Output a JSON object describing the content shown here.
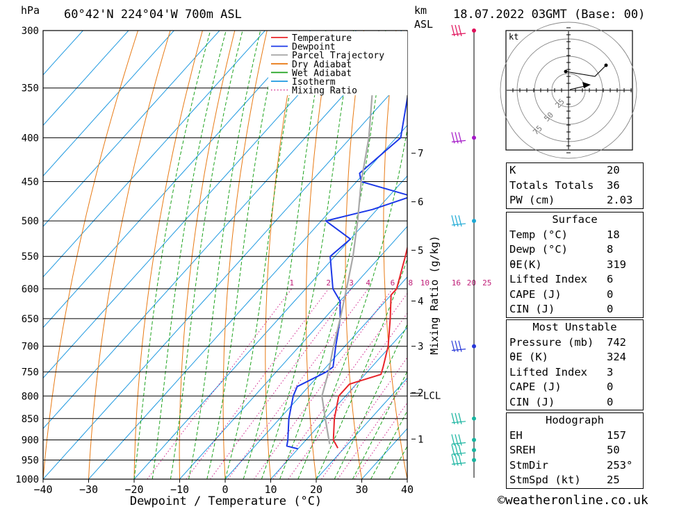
{
  "header": {
    "station": "60°42'N  224°04'W  700m  ASL",
    "valid_time": "18.07.2022  03GMT  (Base: 00)",
    "pressure_unit": "hPa",
    "height_unit_line1": "km",
    "height_unit_line2": "ASL",
    "lcl_label": "LCL",
    "credit": "©weatheronline.co.uk"
  },
  "chart_data": {
    "type": "line",
    "xlabel": "Dewpoint / Temperature (°C)",
    "ylabel_left": "hPa",
    "ylabel_right": "Mixing Ratio (g/kg)",
    "x_ticks": [
      -40,
      -30,
      -20,
      -10,
      0,
      10,
      20,
      30,
      40
    ],
    "xlim": [
      -40,
      40
    ],
    "pressure_levels": [
      300,
      350,
      400,
      450,
      500,
      550,
      600,
      650,
      700,
      750,
      800,
      850,
      900,
      950,
      1000
    ],
    "ylim_hpa": [
      1000,
      300
    ],
    "y_scale": "log",
    "km_ticks": [
      {
        "km": 1,
        "p": 898
      },
      {
        "km": 2,
        "p": 793
      },
      {
        "km": 3,
        "p": 700
      },
      {
        "km": 4,
        "p": 620
      },
      {
        "km": 5,
        "p": 541
      },
      {
        "km": 6,
        "p": 475
      },
      {
        "km": 7,
        "p": 417
      }
    ],
    "lcl_hpa": 797,
    "mixing_ratio_labels": [
      "1",
      "2",
      "3",
      "4",
      "6",
      "8",
      "10",
      "16",
      "20",
      "25"
    ],
    "mixing_ratio_label_hpa": 600,
    "legend_position": "top-right",
    "legend": [
      {
        "name": "Temperature",
        "color": "#e8242a",
        "style": "solid"
      },
      {
        "name": "Dewpoint",
        "color": "#1c38e8",
        "style": "solid"
      },
      {
        "name": "Parcel Trajectory",
        "color": "#a8a8a8",
        "style": "solid"
      },
      {
        "name": "Dry Adiabat",
        "color": "#e87a14",
        "style": "solid"
      },
      {
        "name": "Wet Adiabat",
        "color": "#1ca21c",
        "style": "solid"
      },
      {
        "name": "Isotherm",
        "color": "#1c98e0",
        "style": "solid"
      },
      {
        "name": "Mixing Ratio",
        "color": "#d0208a",
        "style": "dotted"
      }
    ],
    "series": [
      {
        "name": "Temperature",
        "points": [
          [
            920,
            18.6
          ],
          [
            900,
            16
          ],
          [
            850,
            12
          ],
          [
            800,
            8.5
          ],
          [
            775,
            8.5
          ],
          [
            755,
            13.5
          ],
          [
            740,
            12.5
          ],
          [
            700,
            9.5
          ],
          [
            650,
            4.5
          ],
          [
            610,
            0
          ],
          [
            600,
            0
          ],
          [
            550,
            -4.5
          ],
          [
            530,
            -6.5
          ],
          [
            500,
            -9.5
          ],
          [
            450,
            -16
          ],
          [
            430,
            -18
          ],
          [
            400,
            -23
          ],
          [
            350,
            -31
          ],
          [
            300,
            -39
          ]
        ]
      },
      {
        "name": "Dewpoint",
        "points": [
          [
            922,
            10
          ],
          [
            915,
            7
          ],
          [
            900,
            6
          ],
          [
            850,
            2
          ],
          [
            800,
            -1.5
          ],
          [
            780,
            -2.5
          ],
          [
            750,
            1
          ],
          [
            740,
            1.5
          ],
          [
            700,
            -2
          ],
          [
            650,
            -6.5
          ],
          [
            620,
            -10
          ],
          [
            600,
            -14
          ],
          [
            550,
            -21
          ],
          [
            525,
            -20
          ],
          [
            500,
            -29
          ],
          [
            485,
            -21
          ],
          [
            468,
            -15
          ],
          [
            450,
            -29
          ],
          [
            440,
            -31
          ],
          [
            400,
            -29
          ],
          [
            350,
            -37
          ],
          [
            300,
            -45
          ]
        ]
      },
      {
        "name": "Parcel Trajectory",
        "points": [
          [
            910,
            16
          ],
          [
            850,
            10
          ],
          [
            800,
            4.8
          ],
          [
            750,
            1.5
          ],
          [
            700,
            -2.5
          ],
          [
            650,
            -6.5
          ],
          [
            600,
            -11
          ],
          [
            550,
            -16
          ],
          [
            500,
            -22
          ],
          [
            450,
            -29
          ],
          [
            400,
            -36
          ],
          [
            350,
            -45
          ],
          [
            300,
            -55
          ]
        ]
      }
    ],
    "wind_barbs": [
      {
        "p": 300,
        "color": "#e0105a"
      },
      {
        "p": 400,
        "color": "#a418c8"
      },
      {
        "p": 500,
        "color": "#1ca8d4"
      },
      {
        "p": 700,
        "color": "#2838d8"
      },
      {
        "p": 850,
        "color": "#18b4a0"
      },
      {
        "p": 900,
        "color": "#18b4a0"
      },
      {
        "p": 925,
        "color": "#18b4a0"
      },
      {
        "p": 950,
        "color": "#18b4a0"
      }
    ]
  },
  "hodograph": {
    "unit_label": "kt",
    "ring_labels": [
      "25",
      "50",
      "75"
    ]
  },
  "indices": {
    "rows": [
      {
        "label": "K",
        "value": "20"
      },
      {
        "label": "Totals Totals",
        "value": "36"
      },
      {
        "label": "PW (cm)",
        "value": "2.03"
      }
    ]
  },
  "surface": {
    "title": "Surface",
    "rows": [
      {
        "label": "Temp (°C)",
        "value": "18"
      },
      {
        "label": "Dewp (°C)",
        "value": "8"
      },
      {
        "label": "θE(K)",
        "value": "319"
      },
      {
        "label": "Lifted Index",
        "value": "6"
      },
      {
        "label": "CAPE (J)",
        "value": "0"
      },
      {
        "label": "CIN (J)",
        "value": "0"
      }
    ]
  },
  "most_unstable": {
    "title": "Most Unstable",
    "rows": [
      {
        "label": "Pressure (mb)",
        "value": "742"
      },
      {
        "label": "θE (K)",
        "value": "324"
      },
      {
        "label": "Lifted Index",
        "value": "3"
      },
      {
        "label": "CAPE (J)",
        "value": "0"
      },
      {
        "label": "CIN (J)",
        "value": "0"
      }
    ]
  },
  "hodograph_stats": {
    "title": "Hodograph",
    "rows": [
      {
        "label": "EH",
        "value": "157"
      },
      {
        "label": "SREH",
        "value": "50"
      },
      {
        "label": "StmDir",
        "value": "253°"
      },
      {
        "label": "StmSpd (kt)",
        "value": "25"
      }
    ]
  }
}
